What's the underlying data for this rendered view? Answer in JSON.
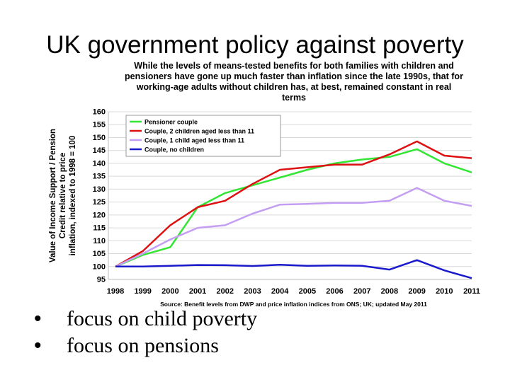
{
  "slide": {
    "title": "UK government policy against poverty",
    "bullets": [
      "focus on child poverty",
      "focus on pensions"
    ]
  },
  "chart_data": {
    "type": "line",
    "title": "While the levels of means-tested benefits for both families with children and pensioners have gone up much faster than inflation since the late 1990s, that for working-age adults without children has, at best, remained constant in real terms",
    "ylabel": "Value of Income Support / Pension Credit relative to price inflation, indexed to 1998 = 100",
    "xlabel": "",
    "source": "Source: Benefit levels from DWP and price inflation indices from ONS; UK; updated May 2011",
    "ylim": [
      95,
      160
    ],
    "yticks": [
      95,
      100,
      105,
      110,
      115,
      120,
      125,
      130,
      135,
      140,
      145,
      150,
      155,
      160
    ],
    "grid": true,
    "legend_position": "top-left",
    "categories": [
      "1998",
      "1999",
      "2000",
      "2001",
      "2002",
      "2003",
      "2004",
      "2005",
      "2006",
      "2007",
      "2008",
      "2009",
      "2010",
      "2011"
    ],
    "series": [
      {
        "name": "Pensioner couple",
        "color": "#33e633",
        "values": [
          100,
          104.5,
          107.5,
          123,
          128.5,
          131.5,
          134.5,
          137.5,
          140,
          141.5,
          142.5,
          145.5,
          140,
          136.5
        ]
      },
      {
        "name": "Couple, 2 children aged less than 11",
        "color": "#dd1111",
        "values": [
          100,
          106,
          116,
          123,
          125.5,
          132,
          137.5,
          138.5,
          139.5,
          139.5,
          143.5,
          148.5,
          143,
          142
        ]
      },
      {
        "name": "Couple, 1 child aged less than 11",
        "color": "#c49ef2",
        "values": [
          100,
          105,
          110.5,
          115,
          116,
          120.5,
          124,
          124.3,
          124.7,
          124.7,
          125.5,
          130.5,
          125.5,
          123.5
        ]
      },
      {
        "name": "Couple, no children",
        "color": "#1a1acc",
        "values": [
          100,
          100,
          100.3,
          100.6,
          100.5,
          100.2,
          100.7,
          100.3,
          100.4,
          100.3,
          98.8,
          102.5,
          98.5,
          95.5
        ]
      }
    ]
  }
}
